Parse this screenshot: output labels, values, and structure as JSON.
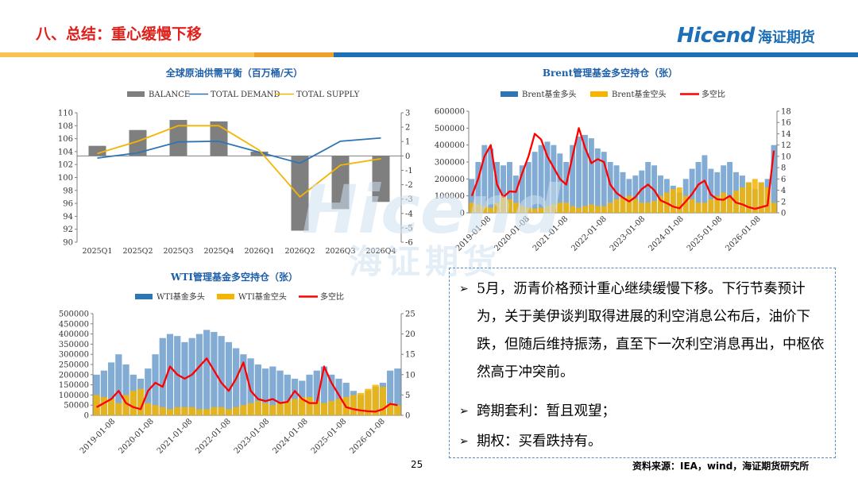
{
  "slide": {
    "title": "八、总结：重心缓慢下移",
    "logo_text": "Hicend",
    "logo_cn": "海证期货",
    "watermark_en": "Hicend",
    "watermark_cn": "海证期货",
    "page_number": "25",
    "source": "资料来源：IEA，wind，海证期货研究所",
    "brand_colors": {
      "red": "#e0201a",
      "blue": "#1d6fb8",
      "yellow": "#f6c350",
      "orange": "#eda12c"
    }
  },
  "summary": {
    "bullets": [
      "5月，沥青价格预计重心继续缓慢下移。下行节奏预计为，关于美伊谈判取得进展的利空消息公布后，油价下跌，但随后维持振荡，直至下一次利空消息再出，中枢依然高于冲突前。",
      "跨期套利：暂且观望；",
      "期权：买看跌持有。"
    ]
  },
  "chart_data": [
    {
      "type": "bar",
      "title": "全球原油供需平衡（百万桶/天）",
      "categories": [
        "2025Q1",
        "2025Q2",
        "2025Q3",
        "2025Q4",
        "2026Q1",
        "2026Q2",
        "2026Q3",
        "2026Q4"
      ],
      "series": [
        {
          "name": "BALANCE",
          "type": "bar",
          "axis": "right",
          "color": "#7f7f7f",
          "values": [
            0.7,
            1.8,
            2.5,
            2.4,
            0.3,
            -5.2,
            -3.7,
            -3.2
          ]
        },
        {
          "name": "TOTAL DEMAND",
          "type": "line",
          "axis": "left",
          "color": "#2e75b6",
          "values": [
            103.0,
            103.8,
            105.5,
            105.6,
            103.9,
            102.2,
            105.6,
            106.1
          ]
        },
        {
          "name": "TOTAL SUPPLY",
          "type": "line",
          "axis": "left",
          "color": "#f4b400",
          "values": [
            103.7,
            105.6,
            108.0,
            108.0,
            104.2,
            97.0,
            101.9,
            102.9
          ]
        }
      ],
      "ylim_left": [
        90,
        110
      ],
      "yticks_left": [
        90,
        92,
        94,
        96,
        98,
        100,
        102,
        104,
        106,
        108,
        110
      ],
      "ylim_right": [
        -6,
        3
      ],
      "yticks_right": [
        -6,
        -5,
        -4,
        -3,
        -2,
        -1,
        0,
        1,
        2,
        3
      ],
      "legend": "top-center",
      "grid": false
    },
    {
      "type": "area",
      "title": "Brent管理基金多空持仓（张）",
      "series": [
        {
          "name": "Brent基金多头",
          "type": "bar",
          "axis": "left",
          "color": "#2e75b6",
          "values": [
            200000,
            300000,
            400000,
            380000,
            300000,
            280000,
            300000,
            220000,
            280000,
            300000,
            360000,
            400000,
            420000,
            400000,
            350000,
            300000,
            400000,
            450000,
            460000,
            440000,
            380000,
            360000,
            300000,
            280000,
            240000,
            200000,
            220000,
            250000,
            300000,
            280000,
            220000,
            200000,
            160000,
            120000,
            200000,
            260000,
            300000,
            340000,
            260000,
            240000,
            280000,
            300000,
            240000,
            220000,
            180000,
            140000,
            180000,
            200000,
            400000
          ]
        },
        {
          "name": "Brent基金空头",
          "type": "bar",
          "axis": "left",
          "color": "#f4b400",
          "values": [
            60000,
            50000,
            40000,
            30000,
            60000,
            100000,
            80000,
            60000,
            40000,
            30000,
            25000,
            30000,
            40000,
            50000,
            60000,
            60000,
            40000,
            30000,
            40000,
            50000,
            40000,
            40000,
            60000,
            80000,
            90000,
            100000,
            80000,
            60000,
            60000,
            70000,
            100000,
            120000,
            140000,
            150000,
            100000,
            80000,
            60000,
            60000,
            80000,
            100000,
            120000,
            100000,
            130000,
            150000,
            180000,
            200000,
            180000,
            150000,
            60000
          ]
        },
        {
          "name": "多空比",
          "type": "line",
          "axis": "right",
          "color": "#ff0000",
          "values": [
            3,
            6,
            10,
            12,
            5,
            2.8,
            3.8,
            3.7,
            7,
            10,
            14,
            13,
            10,
            8,
            6,
            5,
            10,
            15,
            11.5,
            8.8,
            9.5,
            9,
            5,
            3.5,
            2.7,
            2,
            2.8,
            4.2,
            5,
            4,
            2.2,
            1.7,
            1.1,
            0.8,
            2,
            3.3,
            5,
            5.7,
            3.2,
            2.4,
            2.3,
            3,
            1.8,
            1.5,
            1,
            0.7,
            1,
            1.3,
            11
          ]
        }
      ],
      "x_ticks": [
        "2019-01-08",
        "2020-01-08",
        "2021-01-08",
        "2022-01-08",
        "2023-01-08",
        "2024-01-08",
        "2025-01-08",
        "2026-01-08"
      ],
      "ylim_left": [
        0,
        600000
      ],
      "yticks_left": [
        0,
        100000,
        200000,
        300000,
        400000,
        500000,
        600000
      ],
      "ylim_right": [
        0,
        18
      ],
      "yticks_right": [
        0,
        2,
        4,
        6,
        8,
        10,
        12,
        14,
        16,
        18
      ],
      "legend": "top-center",
      "grid": false
    },
    {
      "type": "area",
      "title": "WTI管理基金多空持仓（张）",
      "series": [
        {
          "name": "WTI基金多头",
          "type": "bar",
          "axis": "left",
          "color": "#2e75b6",
          "values": [
            200000,
            220000,
            260000,
            300000,
            250000,
            200000,
            180000,
            230000,
            300000,
            380000,
            400000,
            390000,
            360000,
            380000,
            400000,
            420000,
            410000,
            390000,
            360000,
            330000,
            300000,
            280000,
            250000,
            230000,
            240000,
            220000,
            200000,
            180000,
            170000,
            200000,
            220000,
            240000,
            200000,
            180000,
            160000,
            120000,
            100000,
            120000,
            140000,
            160000,
            220000,
            230000
          ]
        },
        {
          "name": "WTI基金空头",
          "type": "bar",
          "axis": "left",
          "color": "#f4b400",
          "values": [
            100000,
            90000,
            80000,
            60000,
            100000,
            120000,
            130000,
            60000,
            50000,
            40000,
            30000,
            40000,
            40000,
            40000,
            30000,
            30000,
            40000,
            40000,
            30000,
            40000,
            50000,
            60000,
            70000,
            60000,
            50000,
            60000,
            70000,
            80000,
            90000,
            90000,
            70000,
            60000,
            70000,
            80000,
            90000,
            100000,
            110000,
            130000,
            150000,
            140000,
            60000,
            50000
          ]
        },
        {
          "name": "多空比",
          "type": "line",
          "axis": "right",
          "color": "#ff0000",
          "values": [
            2,
            3,
            4,
            6,
            3,
            2,
            1.5,
            6,
            8,
            7,
            12,
            10,
            9,
            10,
            12,
            14,
            11,
            8,
            6,
            9,
            13,
            6,
            4,
            3.5,
            4,
            3,
            3.3,
            6,
            4,
            3,
            3,
            12,
            8,
            5,
            2,
            1.5,
            1.2,
            1,
            0.9,
            1.5,
            2.8,
            2.5
          ]
        }
      ],
      "x_ticks": [
        "2019-01-08",
        "2020-01-08",
        "2021-01-08",
        "2022-01-08",
        "2023-01-08",
        "2024-01-08",
        "2025-01-08",
        "2026-01-08"
      ],
      "ylim_left": [
        0,
        500000
      ],
      "yticks_left": [
        0,
        50000,
        100000,
        150000,
        200000,
        250000,
        300000,
        350000,
        400000,
        450000,
        500000
      ],
      "ylim_right": [
        0,
        25
      ],
      "yticks_right": [
        0,
        5,
        10,
        15,
        20,
        25
      ],
      "legend": "top-center",
      "grid": false
    }
  ]
}
